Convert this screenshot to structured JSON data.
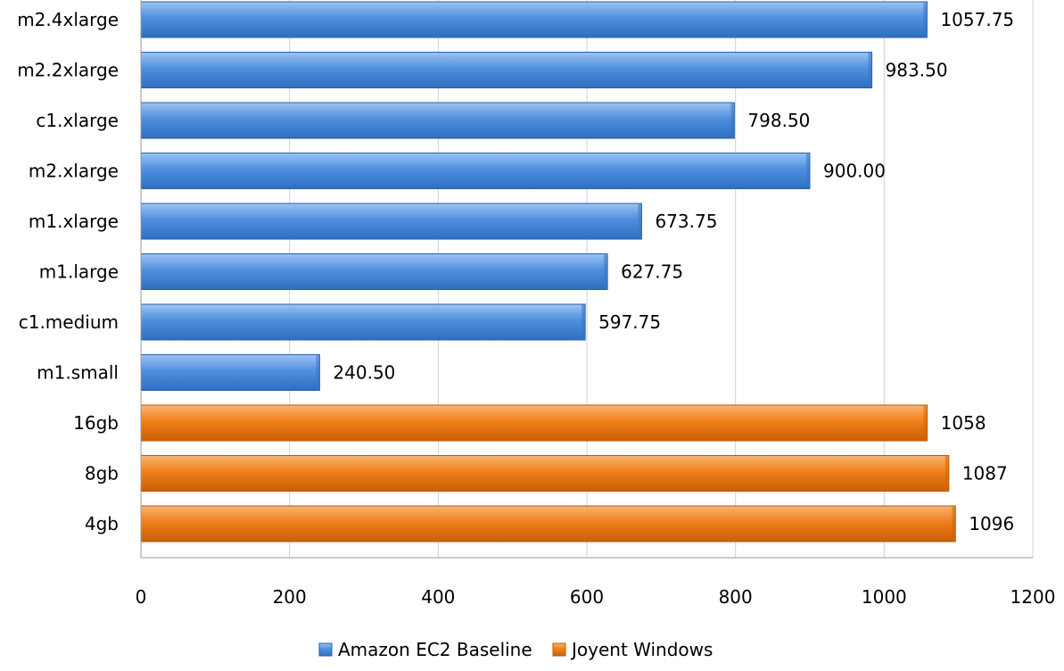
{
  "chart_data": {
    "type": "bar",
    "orientation": "horizontal",
    "categories": [
      "m2.4xlarge",
      "m2.2xlarge",
      "c1.xlarge",
      "m2.xlarge",
      "m1.xlarge",
      "m1.large",
      "c1.medium",
      "m1.small",
      "16gb",
      "8gb",
      "4gb"
    ],
    "series": [
      {
        "name": "Amazon EC2 Baseline",
        "color": "#4f8fdd",
        "values": [
          1057.75,
          983.5,
          798.5,
          900.0,
          673.75,
          627.75,
          597.75,
          240.5,
          null,
          null,
          null
        ],
        "labels": [
          "1057.75",
          "983.50",
          "798.50",
          "900.00",
          "673.75",
          "627.75",
          "597.75",
          "240.50",
          null,
          null,
          null
        ]
      },
      {
        "name": "Joyent Windows",
        "color": "#f07f1b",
        "values": [
          null,
          null,
          null,
          null,
          null,
          null,
          null,
          null,
          1058,
          1087,
          1096
        ],
        "labels": [
          null,
          null,
          null,
          null,
          null,
          null,
          null,
          null,
          "1058",
          "1087",
          "1096"
        ]
      }
    ],
    "xlim": [
      0,
      1200
    ],
    "xticks": [
      0,
      200,
      400,
      600,
      800,
      1000,
      1200
    ],
    "xtick_labels": [
      "0",
      "200",
      "400",
      "600",
      "800",
      "1000",
      "1200"
    ],
    "title": "",
    "xlabel": "",
    "ylabel": "",
    "grid": "vertical",
    "legend": "bottom"
  }
}
